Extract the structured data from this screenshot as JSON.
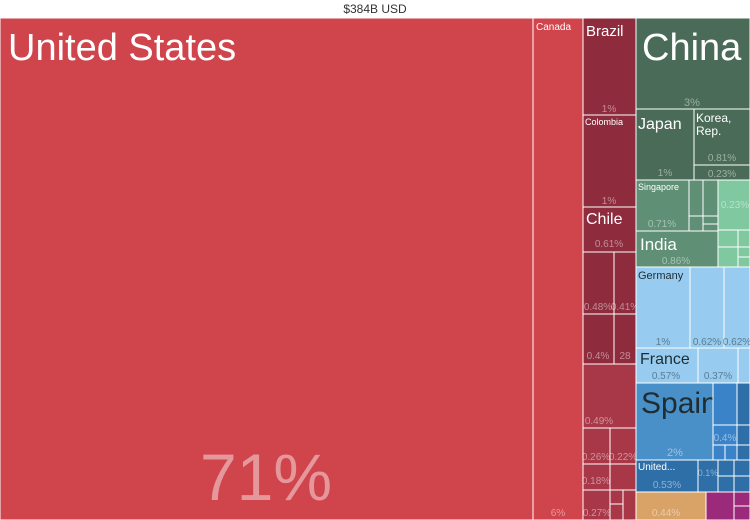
{
  "title": "$384B USD",
  "chart_data": {
    "type": "treemap",
    "total": "$384B USD",
    "labeled_tiles": [
      {
        "name": "United States",
        "pct": "71%"
      },
      {
        "name": "Canada",
        "pct": "6%"
      },
      {
        "name": "Brazil",
        "pct": "1%"
      },
      {
        "name": "Colombia",
        "pct": "1%"
      },
      {
        "name": "Chile",
        "pct": "0.61%"
      },
      {
        "name": "China",
        "pct": "3%"
      },
      {
        "name": "Japan",
        "pct": "1%"
      },
      {
        "name": "Korea, Rep.",
        "pct": "0.81%"
      },
      {
        "name": "Singapore",
        "pct": "0.71%"
      },
      {
        "name": "India",
        "pct": "0.86%"
      },
      {
        "name": "Germany",
        "pct": "1%"
      },
      {
        "name": "France",
        "pct": "0.57%"
      },
      {
        "name": "Spain",
        "pct": "2%"
      },
      {
        "name": "United...",
        "pct": "0.53%"
      }
    ],
    "unlabeled_tile_values": [
      "0.48%",
      "0.41%",
      "0.4%",
      "28",
      "0.49%",
      "0.26%",
      "0.22%",
      "0.18%",
      "0.27%",
      "0.23%",
      "0.23%",
      "0.62%",
      "0.62%",
      "0.37%",
      "0.4%",
      "0.1%",
      "0.44%"
    ],
    "colors": {
      "americas": "#d0444c",
      "americas_dark": "#8e2c3e",
      "americas_mid": "#a83748",
      "asia": "#4a6b58",
      "asia_light": "#5f8f74",
      "asia_lighter": "#7fc8a0",
      "europe": "#97cbef",
      "europe_mid": "#4a90c8",
      "europe_blue": "#3b83c8",
      "europe_dark": "#2e6fa8",
      "oceania": "#d9a266",
      "africa": "#9c2a7a"
    }
  }
}
